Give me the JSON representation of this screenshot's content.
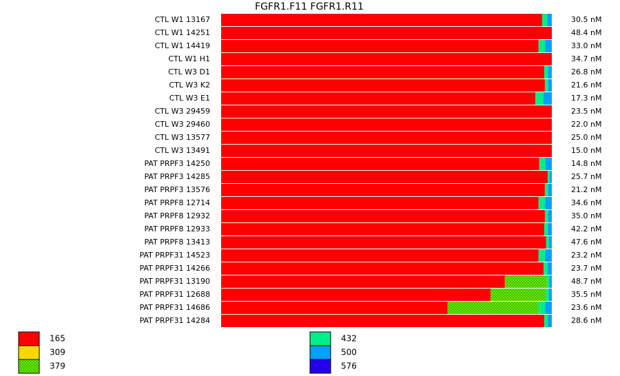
{
  "chart_data": {
    "type": "stacked-bar-horizontal",
    "title": "FGFR1.F11  FGFR1.R11",
    "categories": [
      "CTL W1 13167",
      "CTL W1 14251",
      "CTL W1 14419",
      "CTL W1 H1",
      "CTL W3 D1",
      "CTL W3 K2",
      "CTL W3 E1",
      "CTL W3 29459",
      "CTL W3 29460",
      "CTL W3 13577",
      "CTL W3 13491",
      "PAT PRPF3 14250",
      "PAT PRPF3 14285",
      "PAT PRPF3 13576",
      "PAT PRPF8 12714",
      "PAT PRPF8 12932",
      "PAT PRPF8 12933",
      "PAT PRPF8 13413",
      "PAT PRPF31 14523",
      "PAT PRPF31 14266",
      "PAT PRPF31 13190",
      "PAT PRPF31 12688",
      "PAT PRPF31 14686",
      "PAT PRPF31 14284"
    ],
    "concentration_labels": [
      "30.5 nM",
      "48.4 nM",
      "33.0 nM",
      "34.7 nM",
      "26.8 nM",
      "21.6 nM",
      "17.3 nM",
      "23.5 nM",
      "22.0 nM",
      "25.0 nM",
      "15.0 nM",
      "14.8 nM",
      "25.7 nM",
      "21.2 nM",
      "34.6 nM",
      "35.0 nM",
      "42.2 nM",
      "47.6 nM",
      "23.2 nM",
      "23.7 nM",
      "48.7 nM",
      "35.5 nM",
      "23.6 nM",
      "28.6 nM"
    ],
    "xlim": [
      0,
      100
    ],
    "series": [
      {
        "name": "165",
        "color": "#ff0000",
        "values": [
          97.1,
          100,
          96.0,
          100,
          97.7,
          97.9,
          95.0,
          100,
          100,
          100,
          100,
          96.2,
          98.8,
          97.9,
          96.0,
          97.9,
          97.7,
          98.3,
          96.0,
          97.5,
          85.8,
          81.5,
          68.5,
          97.7
        ]
      },
      {
        "name": "309",
        "color": "#ffd700",
        "values": [
          0,
          0,
          0,
          0,
          0,
          0,
          0,
          0,
          0,
          0,
          0,
          0,
          0,
          0,
          0,
          0,
          0,
          0,
          0,
          0,
          0,
          0,
          0,
          0
        ]
      },
      {
        "name": "379",
        "color": "#66ee00",
        "values": [
          0,
          0,
          0,
          0,
          0,
          0,
          0,
          0,
          0,
          0,
          0,
          0,
          0,
          0,
          0,
          0,
          0,
          0,
          0,
          0,
          12.7,
          16.7,
          27.5,
          0
        ]
      },
      {
        "name": "432",
        "color": "#00ee88",
        "values": [
          1.5,
          0,
          2.0,
          0,
          1.1,
          1.0,
          2.5,
          0,
          0,
          0,
          0,
          1.9,
          0.6,
          1.0,
          2.0,
          1.0,
          1.1,
          0.8,
          2.0,
          1.2,
          0.7,
          0.9,
          2.0,
          1.1
        ]
      },
      {
        "name": "500",
        "color": "#00a0ff",
        "values": [
          1.4,
          0,
          2.0,
          0,
          1.2,
          1.1,
          2.5,
          0,
          0,
          0,
          0,
          1.9,
          0.6,
          1.1,
          2.0,
          1.1,
          1.2,
          0.9,
          2.0,
          1.3,
          0.8,
          0.9,
          2.0,
          1.2
        ]
      },
      {
        "name": "576",
        "color": "#2200ee",
        "values": [
          0,
          0,
          0,
          0,
          0,
          0,
          0,
          0,
          0,
          0,
          0,
          0,
          0,
          0,
          0,
          0,
          0,
          0,
          0,
          0,
          0,
          0,
          0,
          0
        ]
      }
    ]
  }
}
